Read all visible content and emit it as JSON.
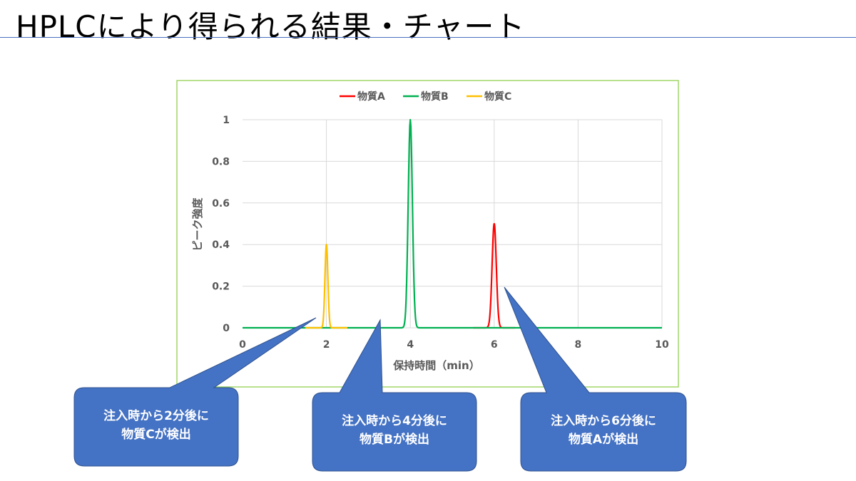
{
  "title": "HPLCにより得られる結果・チャート",
  "colors": {
    "title_rule": "#4a6fc1",
    "chart_border": "#92d050",
    "grid": "#d9d9d9",
    "axis_text": "#595959",
    "callout_fill": "#4472c4",
    "callout_stroke": "#2f528f"
  },
  "chart_data": {
    "type": "line",
    "xlabel": "保持時間（min）",
    "ylabel": "ピーク強度",
    "xlim": [
      0,
      10
    ],
    "ylim": [
      0,
      1
    ],
    "x_ticks": [
      0,
      2,
      4,
      6,
      8,
      10
    ],
    "y_ticks": [
      0,
      0.2,
      0.4,
      0.6,
      0.8,
      1
    ],
    "y_tick_labels": [
      "0",
      "0.2",
      "0.4",
      "0.6",
      "0.8",
      "1"
    ],
    "grid": "vertical and horizontal",
    "legend_position": "top",
    "series": [
      {
        "name": "物質A",
        "color": "#ff0000",
        "peak_time": 6,
        "peak_height": 0.5,
        "width": 0.05,
        "range": [
          5.5,
          6.5
        ]
      },
      {
        "name": "物質B",
        "color": "#00b050",
        "peak_time": 4,
        "peak_height": 1.0,
        "width": 0.05,
        "range": [
          0,
          10
        ]
      },
      {
        "name": "物質C",
        "color": "#ffc000",
        "peak_time": 2,
        "peak_height": 0.4,
        "width": 0.035,
        "range": [
          1.5,
          2.5
        ]
      }
    ]
  },
  "callouts": [
    {
      "lines": [
        "注入時から2分後に",
        "物質Cが検出"
      ],
      "points_to_x": 1.8
    },
    {
      "lines": [
        "注入時から4分後に",
        "物質Bが検出"
      ],
      "points_to_x": 3.9
    },
    {
      "lines": [
        "注入時から6分後に",
        "物質Aが検出"
      ],
      "points_to_x": 6.2
    }
  ]
}
